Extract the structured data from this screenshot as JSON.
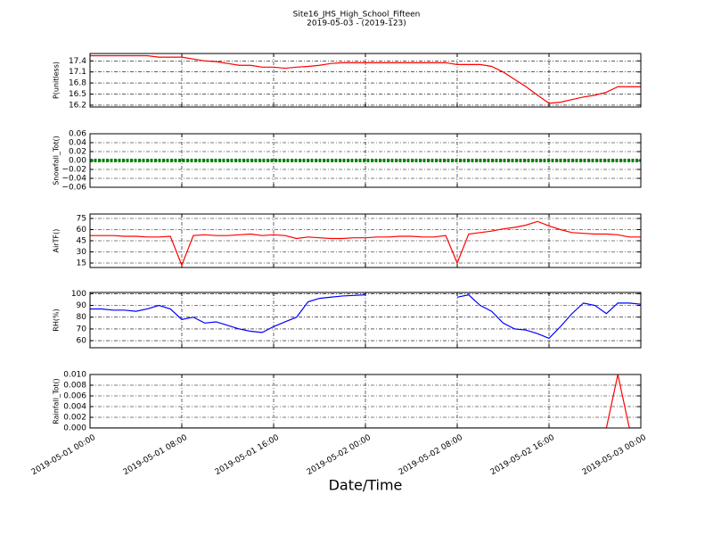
{
  "chart_data": {
    "type": "line",
    "title": "Site16_JHS_High_School_Fifteen",
    "subtitle": "2019-05-03 - (2019-123)",
    "xlabel": "Date/Time",
    "grid": true,
    "x": [
      "2019-05-01 00:00",
      "2019-05-01 01:00",
      "2019-05-01 02:00",
      "2019-05-01 03:00",
      "2019-05-01 04:00",
      "2019-05-01 05:00",
      "2019-05-01 06:00",
      "2019-05-01 07:00",
      "2019-05-01 08:00",
      "2019-05-01 09:00",
      "2019-05-01 10:00",
      "2019-05-01 11:00",
      "2019-05-01 12:00",
      "2019-05-01 13:00",
      "2019-05-01 14:00",
      "2019-05-01 15:00",
      "2019-05-01 16:00",
      "2019-05-01 17:00",
      "2019-05-01 18:00",
      "2019-05-01 19:00",
      "2019-05-01 20:00",
      "2019-05-01 21:00",
      "2019-05-01 22:00",
      "2019-05-01 23:00",
      "2019-05-02 00:00",
      "2019-05-02 01:00",
      "2019-05-02 02:00",
      "2019-05-02 03:00",
      "2019-05-02 04:00",
      "2019-05-02 05:00",
      "2019-05-02 06:00",
      "2019-05-02 07:00",
      "2019-05-02 08:00",
      "2019-05-02 09:00",
      "2019-05-02 10:00",
      "2019-05-02 11:00",
      "2019-05-02 12:00",
      "2019-05-02 13:00",
      "2019-05-02 14:00",
      "2019-05-02 15:00",
      "2019-05-02 16:00",
      "2019-05-02 17:00",
      "2019-05-02 18:00",
      "2019-05-02 19:00",
      "2019-05-02 20:00",
      "2019-05-02 21:00",
      "2019-05-02 22:00",
      "2019-05-02 23:00",
      "2019-05-03 00:00"
    ],
    "xlim": [
      "2019-05-01 00:00",
      "2019-05-03 00:00"
    ],
    "xticks": [
      "2019-05-01 00:00",
      "2019-05-01 08:00",
      "2019-05-01 16:00",
      "2019-05-02 00:00",
      "2019-05-02 08:00",
      "2019-05-02 16:00",
      "2019-05-03 00:00"
    ],
    "panels": [
      {
        "ylabel": "P(unitless)",
        "color": "#ff0000",
        "ylim": [
          16.15,
          17.6
        ],
        "yticks": [
          16.2,
          16.5,
          16.8,
          17.1,
          17.4
        ],
        "values": [
          17.54,
          17.54,
          17.54,
          17.54,
          17.54,
          17.54,
          17.5,
          17.5,
          17.5,
          17.45,
          17.4,
          17.38,
          17.33,
          17.28,
          17.28,
          17.23,
          17.23,
          17.2,
          17.23,
          17.25,
          17.28,
          17.33,
          17.35,
          17.35,
          17.35,
          17.35,
          17.35,
          17.35,
          17.35,
          17.35,
          17.35,
          17.35,
          17.3,
          17.3,
          17.3,
          17.25,
          17.1,
          16.9,
          16.7,
          16.47,
          16.25,
          16.28,
          16.35,
          16.42,
          16.47,
          16.55,
          16.7,
          16.7,
          16.7
        ]
      },
      {
        "ylabel": "Snowfall_Tot()",
        "color": "#008000",
        "ylim": [
          -0.06,
          0.06
        ],
        "yticks": [
          {
            "value": -0.06,
            "label": "−0.06"
          },
          {
            "value": -0.04,
            "label": "−0.04"
          },
          {
            "value": -0.02,
            "label": "−0.02"
          },
          {
            "value": 0,
            "label": "0.00"
          },
          0.02,
          0.04,
          0.06
        ],
        "values": [
          0,
          0,
          0,
          0,
          0,
          0,
          0,
          0,
          0,
          0,
          0,
          0,
          0,
          0,
          0,
          0,
          0,
          0,
          0,
          0,
          0,
          0,
          0,
          0,
          0,
          0,
          0,
          0,
          0,
          0,
          0,
          0,
          0,
          0,
          0,
          0,
          0,
          0,
          0,
          0,
          0,
          0,
          0,
          0,
          0,
          0,
          0,
          0,
          0
        ]
      },
      {
        "ylabel": "AirTF()",
        "color": "#ff0000",
        "ylim": [
          9,
          81
        ],
        "yticks": [
          15,
          30,
          45,
          60,
          75
        ],
        "values": [
          52,
          52,
          52,
          51,
          51,
          50,
          50,
          51,
          12,
          52,
          53,
          52,
          52,
          53,
          54,
          52,
          53,
          52,
          48,
          50,
          49,
          48,
          48,
          49,
          49,
          50,
          50,
          51,
          51,
          50,
          50,
          52,
          15,
          54,
          56,
          58,
          61,
          63,
          66,
          71,
          65,
          60,
          56,
          55,
          54,
          54,
          53,
          50,
          50
        ]
      },
      {
        "ylabel": "RH(%)",
        "color": "#0000ff",
        "ylim": [
          54,
          101
        ],
        "yticks": [
          60,
          70,
          80,
          90,
          100
        ],
        "values": [
          87,
          87,
          86,
          86,
          85,
          87,
          90,
          87,
          78,
          80,
          75,
          76,
          73,
          70,
          68,
          67,
          72,
          76,
          80,
          93,
          96,
          97,
          98,
          98.5,
          99,
          null,
          null,
          null,
          null,
          null,
          null,
          null,
          97,
          99,
          90,
          85,
          75,
          70,
          69,
          66,
          62,
          72,
          83,
          92,
          90,
          83,
          92,
          92,
          91
        ]
      },
      {
        "ylabel": "Rainfall_Tot()",
        "color": "#ff0000",
        "ylim": [
          0,
          0.01
        ],
        "yticks": [
          {
            "value": 0,
            "label": "0.000"
          },
          0.002,
          0.004,
          0.006,
          0.008,
          {
            "value": 0.01,
            "label": "0.010"
          }
        ],
        "values": [
          0,
          0,
          0,
          0,
          0,
          0,
          0,
          0,
          0,
          0,
          0,
          0,
          0,
          0,
          0,
          0,
          0,
          0,
          0,
          0,
          0,
          0,
          0,
          0,
          0,
          0,
          0,
          0,
          0,
          0,
          0,
          0,
          0,
          0,
          0,
          0,
          0,
          0,
          0,
          0,
          0,
          0,
          0,
          0,
          0,
          0,
          0.01,
          0,
          0
        ]
      }
    ]
  }
}
